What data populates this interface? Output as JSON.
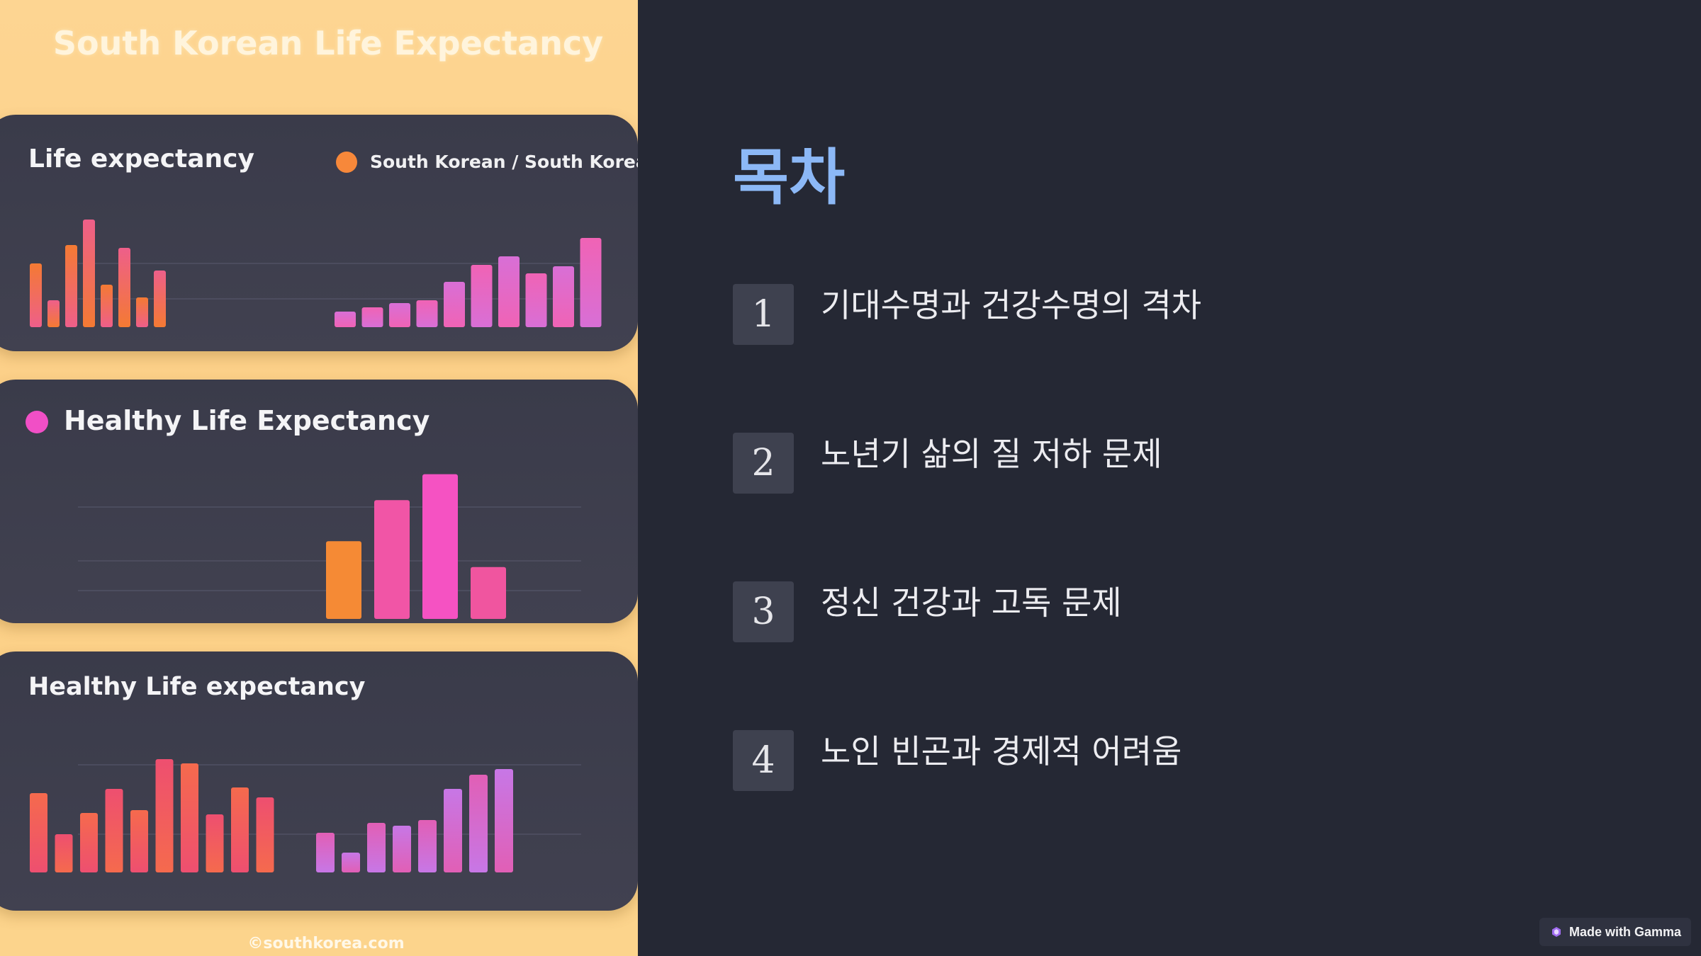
{
  "infographic": {
    "title": "South Korean Life Expectancy",
    "footer": "©southkorea.com",
    "panels": [
      {
        "title": "Life expectancy",
        "legend": "South Korean / South Korea",
        "legend_color": "#f7883a"
      },
      {
        "title": "Healthy Life Expectancy",
        "legend_color": "#f14fc6"
      },
      {
        "title": "Healthy Life expectancy"
      }
    ]
  },
  "chart_data": [
    {
      "type": "bar",
      "groups": [
        {
          "values": [
            45,
            19,
            58,
            76,
            30,
            56,
            21,
            40
          ],
          "colors": [
            "#f47a33",
            "#ee5f8a"
          ]
        },
        {
          "values": [
            11,
            14,
            17,
            19,
            32,
            44,
            50,
            38,
            43,
            63
          ],
          "colors": [
            "#d86fd6",
            "#f063b5"
          ]
        }
      ]
    },
    {
      "type": "bar",
      "groups": [
        {
          "values": [
            36,
            55,
            67,
            24
          ],
          "colors": [
            "#f58a35",
            "#f155a6",
            "#f552c2",
            "#f0559f"
          ]
        }
      ]
    },
    {
      "type": "bar",
      "groups": [
        {
          "values": [
            56,
            27,
            42,
            59,
            44,
            80,
            77,
            41,
            60,
            53
          ],
          "colors": [
            "#f56a4d",
            "#ee4f70"
          ]
        },
        {
          "values": [
            28,
            14,
            35,
            33,
            37,
            59,
            69,
            73
          ],
          "colors": [
            "#e15fb5",
            "#c777e6"
          ]
        }
      ]
    }
  ],
  "toc": {
    "heading": "목차",
    "items": [
      {
        "num": "1",
        "label": "기대수명과 건강수명의 격차"
      },
      {
        "num": "2",
        "label": "노년기 삶의 질 저하 문제"
      },
      {
        "num": "3",
        "label": "정신 건강과 고독 문제"
      },
      {
        "num": "4",
        "label": "노인 빈곤과 경제적 어려움"
      }
    ]
  },
  "badge": {
    "label": "Made with Gamma",
    "icon": "gamma-logo-icon"
  }
}
